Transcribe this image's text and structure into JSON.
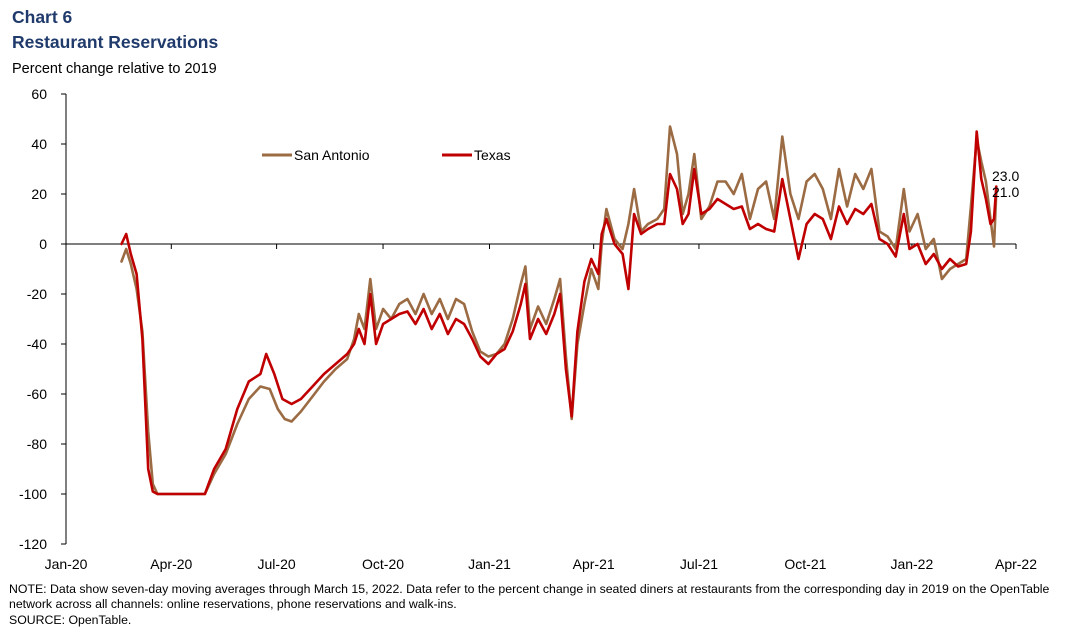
{
  "header": {
    "chart_number": "Chart 6",
    "title": "Restaurant Reservations",
    "ylabel": "Percent change relative to 2019"
  },
  "footer": {
    "note": "NOTE: Data show seven-day moving averages through March 15, 2022. Data refer to the percent change in seated diners at restaurants from the corresponding day in 2019 on the OpenTable network across all channels: online reservations, phone reservations and walk-ins.",
    "source": "SOURCE:  OpenTable."
  },
  "colors": {
    "San Antonio": "#9b6b43",
    "Texas": "#c00000"
  },
  "chart_data": {
    "type": "line",
    "title": "Restaurant Reservations",
    "xlabel": "",
    "ylabel": "Percent change relative to 2019",
    "ylim": [
      -120,
      60
    ],
    "yticks": [
      60,
      40,
      20,
      0,
      -20,
      -40,
      -60,
      -80,
      -100,
      -120
    ],
    "xlim": [
      "2020-01-01",
      "2022-04-01"
    ],
    "xticks": [
      "Jan-20",
      "Apr-20",
      "Jul-20",
      "Oct-20",
      "Jan-21",
      "Apr-21",
      "Jul-21",
      "Oct-21",
      "Jan-22",
      "Apr-22"
    ],
    "legend": "top-left, inside plot",
    "end_labels": [
      {
        "series": "Texas",
        "text": "23.0"
      },
      {
        "series": "San Antonio",
        "text": "21.0"
      }
    ],
    "series": [
      {
        "name": "San Antonio",
        "color": "#9b6b43",
        "points": [
          [
            "2020-02-18",
            -7
          ],
          [
            "2020-02-22",
            -2
          ],
          [
            "2020-02-26",
            -8
          ],
          [
            "2020-03-02",
            -18
          ],
          [
            "2020-03-07",
            -35
          ],
          [
            "2020-03-12",
            -75
          ],
          [
            "2020-03-16",
            -96
          ],
          [
            "2020-03-20",
            -100
          ],
          [
            "2020-04-30",
            -100
          ],
          [
            "2020-05-08",
            -92
          ],
          [
            "2020-05-18",
            -84
          ],
          [
            "2020-05-28",
            -72
          ],
          [
            "2020-06-07",
            -62
          ],
          [
            "2020-06-17",
            -57
          ],
          [
            "2020-06-25",
            -58
          ],
          [
            "2020-07-02",
            -66
          ],
          [
            "2020-07-08",
            -70
          ],
          [
            "2020-07-14",
            -71
          ],
          [
            "2020-07-22",
            -67
          ],
          [
            "2020-08-01",
            -61
          ],
          [
            "2020-08-11",
            -55
          ],
          [
            "2020-08-21",
            -50
          ],
          [
            "2020-08-31",
            -46
          ],
          [
            "2020-09-06",
            -38
          ],
          [
            "2020-09-10",
            -28
          ],
          [
            "2020-09-15",
            -34
          ],
          [
            "2020-09-20",
            -14
          ],
          [
            "2020-09-25",
            -34
          ],
          [
            "2020-10-01",
            -26
          ],
          [
            "2020-10-08",
            -30
          ],
          [
            "2020-10-15",
            -24
          ],
          [
            "2020-10-22",
            -22
          ],
          [
            "2020-10-29",
            -28
          ],
          [
            "2020-11-05",
            -20
          ],
          [
            "2020-11-12",
            -28
          ],
          [
            "2020-11-19",
            -22
          ],
          [
            "2020-11-26",
            -30
          ],
          [
            "2020-12-03",
            -22
          ],
          [
            "2020-12-10",
            -24
          ],
          [
            "2020-12-17",
            -35
          ],
          [
            "2020-12-24",
            -43
          ],
          [
            "2020-12-31",
            -45
          ],
          [
            "2021-01-07",
            -44
          ],
          [
            "2021-01-14",
            -40
          ],
          [
            "2021-01-21",
            -30
          ],
          [
            "2021-01-28",
            -16
          ],
          [
            "2021-02-01",
            -9
          ],
          [
            "2021-02-05",
            -34
          ],
          [
            "2021-02-12",
            -25
          ],
          [
            "2021-02-19",
            -32
          ],
          [
            "2021-02-26",
            -22
          ],
          [
            "2021-03-03",
            -14
          ],
          [
            "2021-03-08",
            -45
          ],
          [
            "2021-03-13",
            -70
          ],
          [
            "2021-03-18",
            -40
          ],
          [
            "2021-03-24",
            -24
          ],
          [
            "2021-03-30",
            -10
          ],
          [
            "2021-04-05",
            -18
          ],
          [
            "2021-04-08",
            0
          ],
          [
            "2021-04-12",
            14
          ],
          [
            "2021-04-19",
            2
          ],
          [
            "2021-04-26",
            -2
          ],
          [
            "2021-05-01",
            8
          ],
          [
            "2021-05-06",
            22
          ],
          [
            "2021-05-12",
            5
          ],
          [
            "2021-05-18",
            8
          ],
          [
            "2021-05-26",
            10
          ],
          [
            "2021-06-01",
            14
          ],
          [
            "2021-06-06",
            47
          ],
          [
            "2021-06-12",
            36
          ],
          [
            "2021-06-17",
            12
          ],
          [
            "2021-06-22",
            20
          ],
          [
            "2021-06-27",
            36
          ],
          [
            "2021-07-03",
            10
          ],
          [
            "2021-07-10",
            15
          ],
          [
            "2021-07-17",
            25
          ],
          [
            "2021-07-24",
            25
          ],
          [
            "2021-07-31",
            20
          ],
          [
            "2021-08-07",
            28
          ],
          [
            "2021-08-14",
            10
          ],
          [
            "2021-08-21",
            22
          ],
          [
            "2021-08-28",
            25
          ],
          [
            "2021-09-04",
            10
          ],
          [
            "2021-09-11",
            43
          ],
          [
            "2021-09-18",
            20
          ],
          [
            "2021-09-25",
            10
          ],
          [
            "2021-10-02",
            25
          ],
          [
            "2021-10-09",
            28
          ],
          [
            "2021-10-16",
            22
          ],
          [
            "2021-10-23",
            10
          ],
          [
            "2021-10-30",
            30
          ],
          [
            "2021-11-06",
            15
          ],
          [
            "2021-11-13",
            28
          ],
          [
            "2021-11-20",
            22
          ],
          [
            "2021-11-27",
            30
          ],
          [
            "2021-12-04",
            5
          ],
          [
            "2021-12-11",
            3
          ],
          [
            "2021-12-18",
            -2
          ],
          [
            "2021-12-25",
            22
          ],
          [
            "2021-12-30",
            5
          ],
          [
            "2022-01-06",
            12
          ],
          [
            "2022-01-13",
            -2
          ],
          [
            "2022-01-20",
            2
          ],
          [
            "2022-01-27",
            -14
          ],
          [
            "2022-02-03",
            -10
          ],
          [
            "2022-02-10",
            -8
          ],
          [
            "2022-02-17",
            -6
          ],
          [
            "2022-02-21",
            15
          ],
          [
            "2022-02-26",
            42
          ],
          [
            "2022-03-02",
            33
          ],
          [
            "2022-03-06",
            25
          ],
          [
            "2022-03-10",
            10
          ],
          [
            "2022-03-13",
            -1
          ],
          [
            "2022-03-15",
            21
          ]
        ]
      },
      {
        "name": "Texas",
        "color": "#c00000",
        "points": [
          [
            "2020-02-18",
            0
          ],
          [
            "2020-02-22",
            4
          ],
          [
            "2020-02-26",
            -4
          ],
          [
            "2020-03-02",
            -12
          ],
          [
            "2020-03-07",
            -38
          ],
          [
            "2020-03-12",
            -90
          ],
          [
            "2020-03-16",
            -99
          ],
          [
            "2020-03-20",
            -100
          ],
          [
            "2020-04-30",
            -100
          ],
          [
            "2020-05-08",
            -90
          ],
          [
            "2020-05-18",
            -82
          ],
          [
            "2020-05-28",
            -66
          ],
          [
            "2020-06-07",
            -55
          ],
          [
            "2020-06-17",
            -52
          ],
          [
            "2020-06-22",
            -44
          ],
          [
            "2020-06-29",
            -52
          ],
          [
            "2020-07-06",
            -62
          ],
          [
            "2020-07-14",
            -64
          ],
          [
            "2020-07-22",
            -62
          ],
          [
            "2020-08-01",
            -57
          ],
          [
            "2020-08-11",
            -52
          ],
          [
            "2020-08-21",
            -48
          ],
          [
            "2020-08-31",
            -44
          ],
          [
            "2020-09-06",
            -40
          ],
          [
            "2020-09-10",
            -34
          ],
          [
            "2020-09-15",
            -40
          ],
          [
            "2020-09-20",
            -20
          ],
          [
            "2020-09-25",
            -40
          ],
          [
            "2020-10-01",
            -32
          ],
          [
            "2020-10-08",
            -30
          ],
          [
            "2020-10-15",
            -28
          ],
          [
            "2020-10-22",
            -27
          ],
          [
            "2020-10-29",
            -32
          ],
          [
            "2020-11-05",
            -26
          ],
          [
            "2020-11-12",
            -34
          ],
          [
            "2020-11-19",
            -28
          ],
          [
            "2020-11-26",
            -36
          ],
          [
            "2020-12-03",
            -30
          ],
          [
            "2020-12-10",
            -32
          ],
          [
            "2020-12-17",
            -38
          ],
          [
            "2020-12-24",
            -45
          ],
          [
            "2020-12-31",
            -48
          ],
          [
            "2021-01-07",
            -44
          ],
          [
            "2021-01-14",
            -42
          ],
          [
            "2021-01-21",
            -35
          ],
          [
            "2021-01-28",
            -24
          ],
          [
            "2021-02-01",
            -16
          ],
          [
            "2021-02-05",
            -38
          ],
          [
            "2021-02-12",
            -30
          ],
          [
            "2021-02-19",
            -36
          ],
          [
            "2021-02-26",
            -28
          ],
          [
            "2021-03-03",
            -20
          ],
          [
            "2021-03-08",
            -50
          ],
          [
            "2021-03-13",
            -69
          ],
          [
            "2021-03-18",
            -35
          ],
          [
            "2021-03-24",
            -15
          ],
          [
            "2021-03-30",
            -6
          ],
          [
            "2021-04-05",
            -12
          ],
          [
            "2021-04-08",
            4
          ],
          [
            "2021-04-12",
            10
          ],
          [
            "2021-04-19",
            0
          ],
          [
            "2021-04-26",
            -4
          ],
          [
            "2021-05-01",
            -18
          ],
          [
            "2021-05-06",
            12
          ],
          [
            "2021-05-12",
            4
          ],
          [
            "2021-05-18",
            6
          ],
          [
            "2021-05-26",
            8
          ],
          [
            "2021-06-01",
            8
          ],
          [
            "2021-06-06",
            28
          ],
          [
            "2021-06-12",
            22
          ],
          [
            "2021-06-17",
            8
          ],
          [
            "2021-06-22",
            12
          ],
          [
            "2021-06-27",
            30
          ],
          [
            "2021-07-03",
            12
          ],
          [
            "2021-07-10",
            14
          ],
          [
            "2021-07-17",
            18
          ],
          [
            "2021-07-24",
            16
          ],
          [
            "2021-07-31",
            14
          ],
          [
            "2021-08-07",
            15
          ],
          [
            "2021-08-14",
            6
          ],
          [
            "2021-08-21",
            8
          ],
          [
            "2021-08-28",
            6
          ],
          [
            "2021-09-04",
            5
          ],
          [
            "2021-09-11",
            26
          ],
          [
            "2021-09-18",
            10
          ],
          [
            "2021-09-25",
            -6
          ],
          [
            "2021-10-02",
            8
          ],
          [
            "2021-10-09",
            12
          ],
          [
            "2021-10-16",
            10
          ],
          [
            "2021-10-23",
            2
          ],
          [
            "2021-10-30",
            15
          ],
          [
            "2021-11-06",
            8
          ],
          [
            "2021-11-13",
            14
          ],
          [
            "2021-11-20",
            12
          ],
          [
            "2021-11-27",
            16
          ],
          [
            "2021-12-04",
            2
          ],
          [
            "2021-12-11",
            0
          ],
          [
            "2021-12-18",
            -5
          ],
          [
            "2021-12-25",
            12
          ],
          [
            "2021-12-30",
            -2
          ],
          [
            "2022-01-06",
            0
          ],
          [
            "2022-01-13",
            -8
          ],
          [
            "2022-01-20",
            -4
          ],
          [
            "2022-01-27",
            -10
          ],
          [
            "2022-02-03",
            -6
          ],
          [
            "2022-02-10",
            -9
          ],
          [
            "2022-02-17",
            -8
          ],
          [
            "2022-02-21",
            5
          ],
          [
            "2022-02-26",
            45
          ],
          [
            "2022-03-02",
            26
          ],
          [
            "2022-03-06",
            18
          ],
          [
            "2022-03-10",
            8
          ],
          [
            "2022-03-13",
            10
          ],
          [
            "2022-03-15",
            23
          ]
        ]
      }
    ]
  }
}
